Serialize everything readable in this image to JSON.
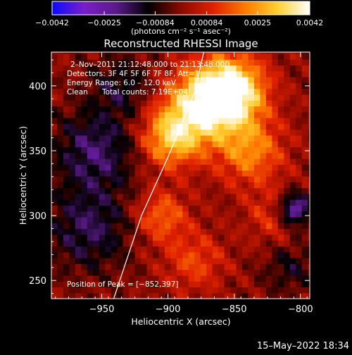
{
  "chart_data": {
    "type": "heatmap",
    "title": "Reconstructed RHESSI Image",
    "xlabel": "Heliocentric X (arcsec)",
    "ylabel": "Heliocentric Y (arcsec)",
    "xlim": [
      -988,
      -793
    ],
    "ylim": [
      236,
      426
    ],
    "x_ticks": [
      -950,
      -900,
      -850,
      -800
    ],
    "y_ticks": [
      250,
      300,
      350,
      400
    ],
    "x_tick_labels": [
      "−950",
      "−900",
      "−850",
      "−800"
    ],
    "y_tick_labels": [
      "250",
      "300",
      "350",
      "400"
    ],
    "colorbar": {
      "range": [
        -0.0042,
        0.0042
      ],
      "tick_values": [
        -0.0042,
        -0.0025,
        -0.00084,
        0.00084,
        0.0025,
        0.0042
      ],
      "tick_labels": [
        "−0.0042",
        "−0.0025",
        "−0.00084",
        "0.00084",
        "0.0025",
        "0.0042"
      ],
      "units": "(photons cm⁻² s⁻¹ asec⁻²)",
      "stops": [
        "#0a0aff",
        "#7a1fc8",
        "#5a1a8a",
        "#000000",
        "#8a0a00",
        "#e02000",
        "#ff7a00",
        "#ffd030",
        "#ffffff"
      ]
    },
    "annotations": {
      "time_range": "2–Nov–2011 21:12:48.000 to 21:13:48.000",
      "detectors": "Detectors: 3F 4F 5F 6F 7F 8F, Att=1",
      "energy_range": "Energy Range: 6.0 – 12.0 keV",
      "method": "Clean",
      "total_counts": "Total counts: 7.19E+04",
      "peak": "Position of Peak = [−852,397]"
    },
    "peak_position": [
      -852,
      397
    ],
    "limb_curve": [
      [
        -941,
        236
      ],
      [
        -920,
        300
      ],
      [
        -900,
        345
      ],
      [
        -880,
        395
      ],
      [
        -873,
        426
      ]
    ],
    "sources": [
      {
        "x": -852,
        "y": 397,
        "amplitude": 0.0042,
        "sigma": 18
      },
      {
        "x": -875,
        "y": 385,
        "amplitude": 0.0032,
        "sigma": 20
      },
      {
        "x": -898,
        "y": 360,
        "amplitude": 0.0028,
        "sigma": 16
      },
      {
        "x": -838,
        "y": 350,
        "amplitude": 0.0022,
        "sigma": 18
      },
      {
        "x": -905,
        "y": 300,
        "amplitude": 0.0018,
        "sigma": 14
      },
      {
        "x": -880,
        "y": 265,
        "amplitude": 0.0014,
        "sigma": 16
      },
      {
        "x": -820,
        "y": 300,
        "amplitude": 0.0012,
        "sigma": 14
      },
      {
        "x": -955,
        "y": 350,
        "amplitude": -0.0018,
        "sigma": 22
      },
      {
        "x": -960,
        "y": 290,
        "amplitude": -0.0016,
        "sigma": 22
      },
      {
        "x": -935,
        "y": 400,
        "amplitude": -0.0012,
        "sigma": 16
      },
      {
        "x": -805,
        "y": 305,
        "amplitude": -0.003,
        "sigma": 9
      },
      {
        "x": -808,
        "y": 260,
        "amplitude": -0.001,
        "sigma": 14
      }
    ]
  },
  "footer": {
    "timestamp": "15–May–2022 18:34"
  }
}
